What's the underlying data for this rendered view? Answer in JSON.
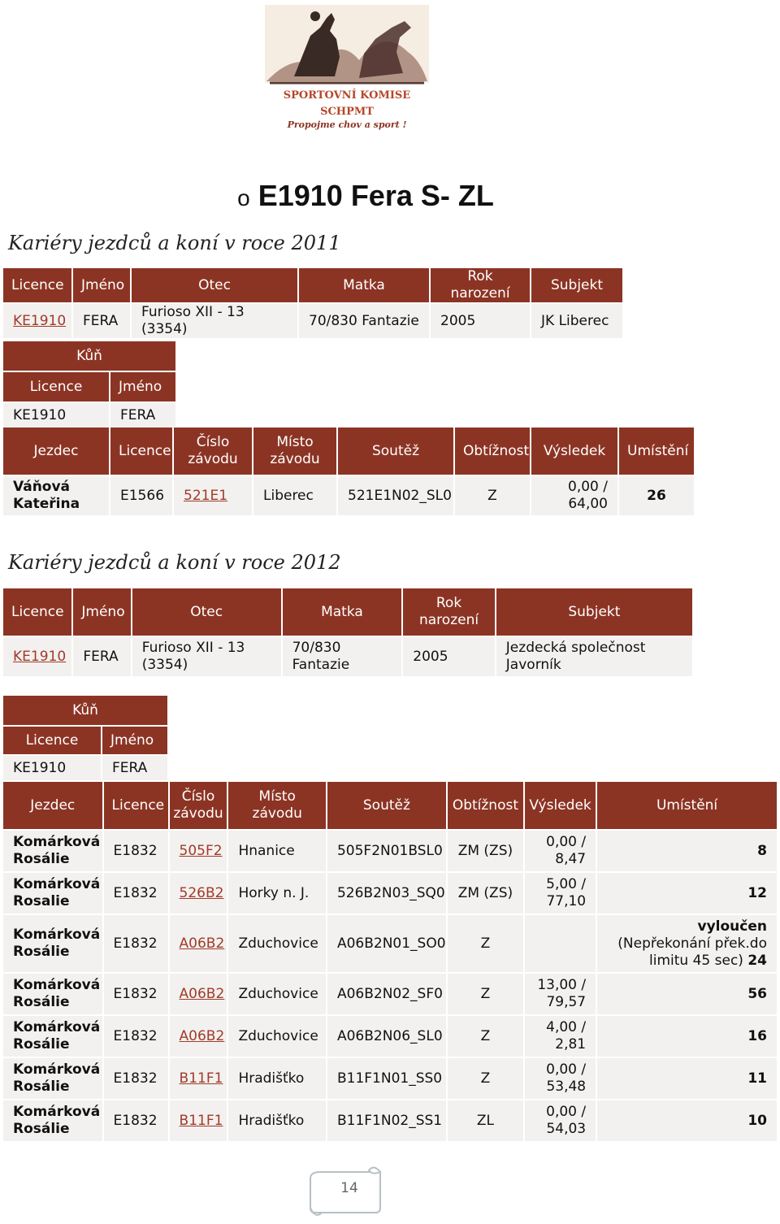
{
  "logo": {
    "line1": "SPORTOVNÍ KOMISE",
    "line2": "SCHPMT",
    "line3": "Propojme chov a sport !"
  },
  "heading": {
    "bullet": "o",
    "text": "E1910 Fera  S- ZL"
  },
  "section2011": {
    "title": "Kariéry jezdců a koní v roce 2011",
    "horse": {
      "headers": [
        "Licence",
        "Jméno",
        "Otec",
        "Matka",
        "Rok narození",
        "Subjekt"
      ],
      "row": {
        "licence": "KE1910",
        "jmeno": "FERA",
        "otec": "Furioso XII - 13 (3354)",
        "matka": "70/830 Fantazie",
        "rok": "2005",
        "subjekt": "JK Liberec"
      }
    },
    "kun": {
      "title": "Kůň",
      "headers": [
        "Licence",
        "Jméno"
      ],
      "licence": "KE1910",
      "jmeno": "FERA"
    },
    "results": {
      "headers": [
        "Jezdec",
        "Licence",
        "Číslo závodu",
        "Místo závodu",
        "Soutěž",
        "Obtížnost",
        "Výsledek",
        "Umístění"
      ],
      "rows": [
        {
          "jezdec": "Váňová Kateřina",
          "licence": "E1566",
          "cislo": "521E1",
          "misto": "Liberec",
          "soutez": "521E1N02_SL0",
          "obtiznost": "Z",
          "vysledek": "0,00 / 64,00",
          "umisteni": "26"
        }
      ]
    }
  },
  "section2012": {
    "title": "Kariéry jezdců a koní v roce 2012",
    "horse": {
      "headers": [
        "Licence",
        "Jméno",
        "Otec",
        "Matka",
        "Rok narození",
        "Subjekt"
      ],
      "row": {
        "licence": "KE1910",
        "jmeno": "FERA",
        "otec": "Furioso XII - 13 (3354)",
        "matka": "70/830 Fantazie",
        "rok": "2005",
        "subjekt": "Jezdecká společnost Javorník"
      }
    },
    "kun": {
      "title": "Kůň",
      "headers": [
        "Licence",
        "Jméno"
      ],
      "licence": "KE1910",
      "jmeno": "FERA"
    },
    "results": {
      "headers": [
        "Jezdec",
        "Licence",
        "Číslo závodu",
        "Místo závodu",
        "Soutěž",
        "Obtížnost",
        "Výsledek",
        "Umístění"
      ],
      "rows": [
        {
          "jezdec": "Komárková Rosálie",
          "licence": "E1832",
          "cislo": "505F2",
          "misto": "Hnanice",
          "soutez": "505F2N01BSL0",
          "obtiznost": "ZM (ZS)",
          "vysledek": "0,00 / 8,47",
          "umisteni_bold": "",
          "umisteni_note": "",
          "umisteni": "8"
        },
        {
          "jezdec": "Komárková Rosalie",
          "licence": "E1832",
          "cislo": "526B2",
          "misto": "Horky n. J.",
          "soutez": "526B2N03_SQ0",
          "obtiznost": "ZM (ZS)",
          "vysledek": "5,00 / 77,10",
          "umisteni_bold": "",
          "umisteni_note": "",
          "umisteni": "12"
        },
        {
          "jezdec": "Komárková Rosálie",
          "licence": "E1832",
          "cislo": "A06B2",
          "misto": "Zduchovice",
          "soutez": "A06B2N01_SO0",
          "obtiznost": "Z",
          "vysledek": "",
          "umisteni_bold": "vyloučen",
          "umisteni_note": " (Nepřekonání přek.do limitu 45 sec) ",
          "umisteni": "24"
        },
        {
          "jezdec": "Komárková Rosálie",
          "licence": "E1832",
          "cislo": "A06B2",
          "misto": "Zduchovice",
          "soutez": "A06B2N02_SF0",
          "obtiznost": "Z",
          "vysledek": "13,00 / 79,57",
          "umisteni_bold": "",
          "umisteni_note": "",
          "umisteni": "56"
        },
        {
          "jezdec": "Komárková Rosálie",
          "licence": "E1832",
          "cislo": "A06B2",
          "misto": "Zduchovice",
          "soutez": "A06B2N06_SL0",
          "obtiznost": "Z",
          "vysledek": "4,00 / 2,81",
          "umisteni_bold": "",
          "umisteni_note": "",
          "umisteni": "16"
        },
        {
          "jezdec": "Komárková Rosálie",
          "licence": "E1832",
          "cislo": "B11F1",
          "misto": "Hradišťko",
          "soutez": "B11F1N01_SS0",
          "obtiznost": "Z",
          "vysledek": "0,00 / 53,48",
          "umisteni_bold": "",
          "umisteni_note": "",
          "umisteni": "11"
        },
        {
          "jezdec": "Komárková Rosálie",
          "licence": "E1832",
          "cislo": "B11F1",
          "misto": "Hradišťko",
          "soutez": "B11F1N02_SS1",
          "obtiznost": "ZL",
          "vysledek": "0,00 / 54,03",
          "umisteni_bold": "",
          "umisteni_note": "",
          "umisteni": "10"
        }
      ]
    }
  },
  "page_number": "14"
}
